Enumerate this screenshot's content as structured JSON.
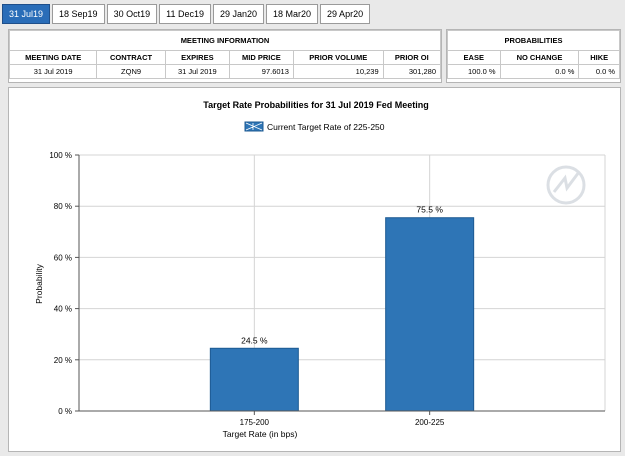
{
  "tabs": [
    {
      "label": "31 Jul19",
      "active": true
    },
    {
      "label": "18 Sep19",
      "active": false
    },
    {
      "label": "30 Oct19",
      "active": false
    },
    {
      "label": "11 Dec19",
      "active": false
    },
    {
      "label": "29 Jan20",
      "active": false
    },
    {
      "label": "18 Mar20",
      "active": false
    },
    {
      "label": "29 Apr20",
      "active": false
    }
  ],
  "meeting_info": {
    "heading": "MEETING INFORMATION",
    "columns": [
      "MEETING DATE",
      "CONTRACT",
      "EXPIRES",
      "MID PRICE",
      "PRIOR VOLUME",
      "PRIOR OI"
    ],
    "row": [
      "31 Jul 2019",
      "ZQN9",
      "31 Jul 2019",
      "97.6013",
      "10,239",
      "301,280"
    ]
  },
  "probabilities": {
    "heading": "PROBABILITIES",
    "columns": [
      "EASE",
      "NO CHANGE",
      "HIKE"
    ],
    "row": [
      "100.0 %",
      "0.0 %",
      "0.0 %"
    ]
  },
  "colors": {
    "bar": "#2e75b6",
    "bar_border": "#1d5a92",
    "grid": "#d4d4d4",
    "tab_active": "#2a6db8"
  },
  "chart_data": {
    "type": "bar",
    "title": "Target Rate Probabilities for 31 Jul 2019 Fed Meeting",
    "legend": "Current Target Rate of 225-250",
    "legend_placement": "top-center",
    "xlabel": "Target Rate (in bps)",
    "ylabel": "Probability",
    "categories": [
      "175-200",
      "200-225"
    ],
    "values": [
      24.5,
      75.5
    ],
    "data_labels": [
      "24.5 %",
      "75.5 %"
    ],
    "ylim": [
      0,
      100
    ],
    "yticks": [
      0,
      20,
      40,
      60,
      80,
      100
    ],
    "ytick_labels": [
      "0 %",
      "20 %",
      "40 %",
      "60 %",
      "80 %",
      "100 %"
    ],
    "grid": true
  }
}
